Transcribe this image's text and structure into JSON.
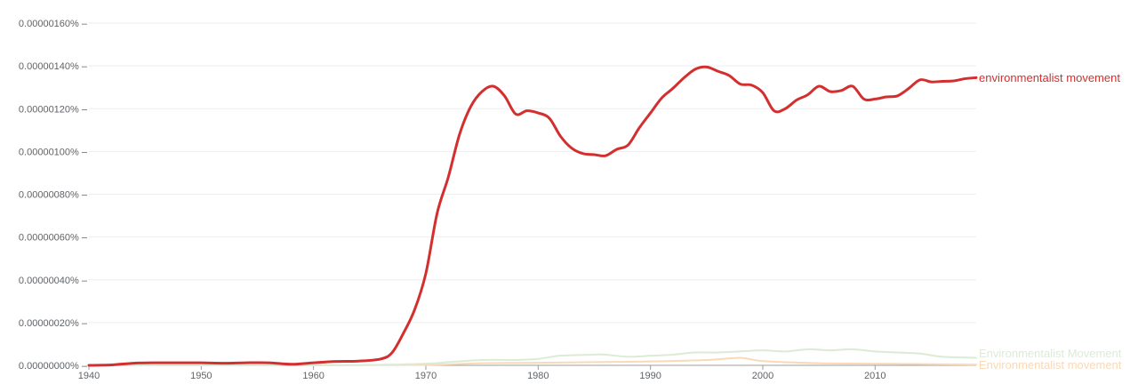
{
  "chart_data": {
    "type": "line",
    "title": "",
    "xlabel": "",
    "ylabel": "",
    "xlim": [
      1940,
      2019
    ],
    "ylim": [
      0,
      1.6e-06
    ],
    "grid": true,
    "x_ticks": [
      1940,
      1950,
      1960,
      1970,
      1980,
      1990,
      2000,
      2010
    ],
    "x_tick_labels": [
      "1940",
      "1950",
      "1960",
      "1970",
      "1980",
      "1990",
      "2000",
      "2010"
    ],
    "y_ticks": [
      0,
      2e-07,
      4e-07,
      6e-07,
      8e-07,
      1e-06,
      1.2e-06,
      1.4e-06,
      1.6e-06
    ],
    "y_tick_labels": [
      "0.00000000%",
      "0.00000020%",
      "0.00000040%",
      "0.00000060%",
      "0.00000080%",
      "0.00000100%",
      "0.00000120%",
      "0.00000140%",
      "0.00000160%"
    ],
    "series": [
      {
        "name": "environmentalist movement",
        "color": "#d32f2f",
        "x": [
          1940,
          1942,
          1944,
          1946,
          1948,
          1950,
          1952,
          1954,
          1956,
          1958,
          1960,
          1962,
          1964,
          1966,
          1967,
          1968,
          1969,
          1970,
          1971,
          1972,
          1973,
          1974,
          1975,
          1976,
          1977,
          1978,
          1979,
          1980,
          1981,
          1982,
          1983,
          1984,
          1985,
          1986,
          1987,
          1988,
          1989,
          1990,
          1991,
          1992,
          1993,
          1994,
          1995,
          1996,
          1997,
          1998,
          1999,
          2000,
          2001,
          2002,
          2003,
          2004,
          2005,
          2006,
          2007,
          2008,
          2009,
          2010,
          2011,
          2012,
          2013,
          2014,
          2015,
          2016,
          2017,
          2018,
          2019
        ],
        "y": [
          0.0,
          2e-09,
          1e-08,
          1.2e-08,
          1.2e-08,
          1.2e-08,
          1e-08,
          1.2e-08,
          1.2e-08,
          5e-09,
          1.2e-08,
          1.8e-08,
          2e-08,
          3e-08,
          6e-08,
          1.5e-07,
          2.6e-07,
          4.3e-07,
          7.1e-07,
          8.8e-07,
          1.08e-06,
          1.21e-06,
          1.28e-06,
          1.305e-06,
          1.26e-06,
          1.175e-06,
          1.19e-06,
          1.18e-06,
          1.155e-06,
          1.07e-06,
          1.015e-06,
          9.9e-07,
          9.85e-07,
          9.8e-07,
          1.01e-06,
          1.03e-06,
          1.11e-06,
          1.18e-06,
          1.25e-06,
          1.295e-06,
          1.345e-06,
          1.385e-06,
          1.395e-06,
          1.375e-06,
          1.355e-06,
          1.315e-06,
          1.31e-06,
          1.275e-06,
          1.19e-06,
          1.2e-06,
          1.24e-06,
          1.265e-06,
          1.305e-06,
          1.28e-06,
          1.285e-06,
          1.305e-06,
          1.245e-06,
          1.245e-06,
          1.255e-06,
          1.26e-06,
          1.295e-06,
          1.335e-06,
          1.325e-06,
          1.328e-06,
          1.33e-06,
          1.34e-06,
          1.345e-06
        ]
      },
      {
        "name": "Environmentalist Movement",
        "color": "#dcebd6",
        "x": [
          1940,
          1950,
          1960,
          1965,
          1970,
          1972,
          1975,
          1978,
          1980,
          1982,
          1985,
          1986,
          1988,
          1990,
          1992,
          1994,
          1996,
          1998,
          2000,
          2002,
          2004,
          2006,
          2008,
          2010,
          2012,
          2014,
          2016,
          2019
        ],
        "y": [
          0.0,
          0.0,
          1e-09,
          2e-09,
          8e-09,
          1.5e-08,
          2.5e-08,
          2.5e-08,
          3e-08,
          4.5e-08,
          5e-08,
          5e-08,
          4e-08,
          4.5e-08,
          5e-08,
          6e-08,
          6e-08,
          6.5e-08,
          7e-08,
          6.5e-08,
          7.5e-08,
          7e-08,
          7.5e-08,
          6.5e-08,
          6e-08,
          5.5e-08,
          4e-08,
          3.5e-08
        ]
      },
      {
        "name": "Environmentalist movement",
        "color": "#f9d9b8",
        "x": [
          1940,
          1960,
          1970,
          1975,
          1980,
          1985,
          1990,
          1995,
          1998,
          2000,
          2005,
          2010,
          2015,
          2019
        ],
        "y": [
          0.0,
          0.0,
          2e-09,
          1e-08,
          1.2e-08,
          1.5e-08,
          1.8e-08,
          2.5e-08,
          3.5e-08,
          2e-08,
          1e-08,
          8e-09,
          5e-09,
          3e-09
        ]
      }
    ]
  }
}
